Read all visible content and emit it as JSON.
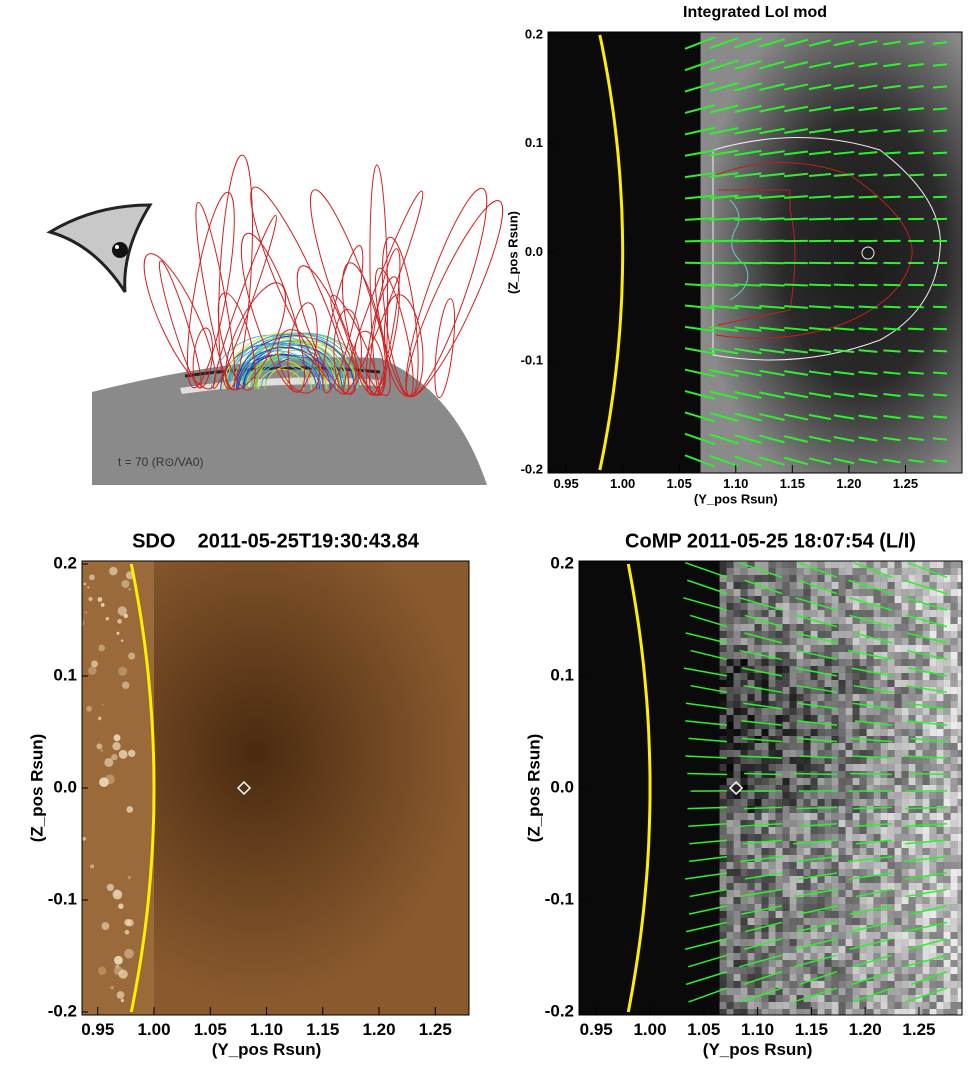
{
  "chart_data": [
    {
      "type": "illustration",
      "annotation": "t = 70 (R⊙/VA0)"
    },
    {
      "type": "map",
      "title": "Integrated LoI mod",
      "xlabel": "(Y_pos Rsun)",
      "ylabel": "(Z_pos Rsun)",
      "xlim": [
        0.934,
        1.3
      ],
      "ylim": [
        -0.2,
        0.2
      ],
      "xticks": [
        0.95,
        {
          "value": 1.0,
          "label": "1.00"
        },
        1.05,
        {
          "value": 1.1,
          "label": "1.10"
        },
        1.15,
        {
          "value": 1.2,
          "label": "1.20"
        },
        1.25
      ],
      "yticks": [
        -0.2,
        -0.1,
        {
          "value": 0,
          "label": "0.0"
        },
        0.1,
        0.2
      ],
      "limb": 1
    },
    {
      "type": "map",
      "title": "SDO    2011-05-25T19:30:43.84",
      "xlabel": "(Y_pos Rsun)",
      "ylabel": "(Z_pos Rsun)",
      "xlim": [
        0.936,
        1.28
      ],
      "ylim": [
        -0.2,
        0.2
      ],
      "xticks": [
        0.95,
        {
          "value": 1.0,
          "label": "1.00"
        },
        1.05,
        {
          "value": 1.1,
          "label": "1.10"
        },
        1.15,
        {
          "value": 1.2,
          "label": "1.20"
        },
        1.25
      ],
      "yticks": [
        -0.2,
        -0.1,
        {
          "value": 0,
          "label": "0.0"
        },
        0.1,
        0.2
      ],
      "limb": 1,
      "marker": {
        "x": 1.08,
        "y": 0
      }
    },
    {
      "type": "map",
      "title": "CoMP 2011-05-25 18:07:54 (L/I)",
      "xlabel": "(Y_pos Rsun)",
      "ylabel": "(Z_pos Rsun)",
      "xlim": [
        0.934,
        1.29
      ],
      "ylim": [
        -0.2,
        0.2
      ],
      "xticks": [
        0.95,
        {
          "value": 1.0,
          "label": "1.00"
        },
        1.05,
        {
          "value": 1.1,
          "label": "1.10"
        },
        1.15,
        {
          "value": 1.2,
          "label": "1.20"
        },
        1.25
      ],
      "yticks": [
        -0.2,
        -0.1,
        {
          "value": 0,
          "label": "0.0"
        },
        0.1,
        0.2
      ],
      "limb": 1,
      "marker": {
        "x": 1.08,
        "y": 0
      }
    }
  ]
}
